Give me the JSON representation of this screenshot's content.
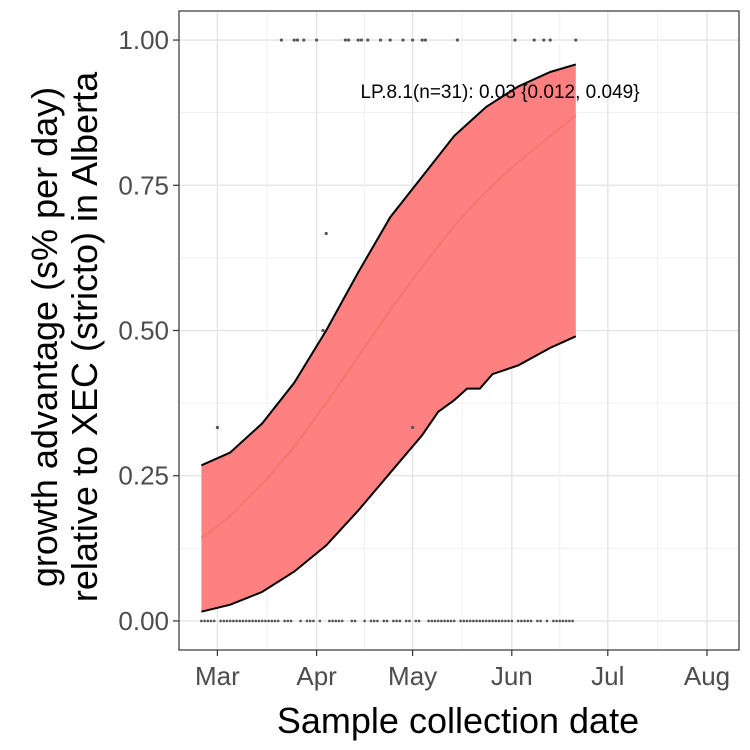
{
  "chart_data": {
    "type": "line",
    "xlabel": "Sample collection date",
    "ylabel": "growth advantage (s% per day)",
    "ylabel_line2": "relative to XEC (stricto) in Alberta",
    "annotation": "LP.8.1(n=31): 0.03 {0.012, 0.049}",
    "x_ticks": [
      {
        "label": "Mar",
        "date": "2025-03-01"
      },
      {
        "label": "Apr",
        "date": "2025-04-01"
      },
      {
        "label": "May",
        "date": "2025-05-01"
      },
      {
        "label": "Jun",
        "date": "2025-06-01"
      },
      {
        "label": "Jul",
        "date": "2025-07-01"
      },
      {
        "label": "Aug",
        "date": "2025-08-01"
      }
    ],
    "y_ticks": [
      "0.00",
      "0.25",
      "0.50",
      "0.75",
      "1.00"
    ],
    "xlim": [
      "2025-02-17",
      "2025-08-11"
    ],
    "ylim": [
      -0.05,
      1.05
    ],
    "grid": true,
    "colors": {
      "fit": "#f8766d",
      "band": "#ff8080",
      "band_edge": "#000000",
      "points": "#555555"
    },
    "series": [
      {
        "name": "LP.8.1",
        "fit": [
          {
            "x": "2025-02-24",
            "y": 0.143
          },
          {
            "x": "2025-03-05",
            "y": 0.18
          },
          {
            "x": "2025-03-15",
            "y": 0.235
          },
          {
            "x": "2025-03-25",
            "y": 0.3
          },
          {
            "x": "2025-04-04",
            "y": 0.375
          },
          {
            "x": "2025-04-14",
            "y": 0.455
          },
          {
            "x": "2025-04-24",
            "y": 0.535
          },
          {
            "x": "2025-05-04",
            "y": 0.61
          },
          {
            "x": "2025-05-14",
            "y": 0.68
          },
          {
            "x": "2025-05-24",
            "y": 0.74
          },
          {
            "x": "2025-06-03",
            "y": 0.79
          },
          {
            "x": "2025-06-13",
            "y": 0.835
          },
          {
            "x": "2025-06-21",
            "y": 0.87
          }
        ],
        "upper": [
          {
            "x": "2025-02-24",
            "y": 0.268
          },
          {
            "x": "2025-03-05",
            "y": 0.29
          },
          {
            "x": "2025-03-15",
            "y": 0.34
          },
          {
            "x": "2025-03-25",
            "y": 0.41
          },
          {
            "x": "2025-04-04",
            "y": 0.5
          },
          {
            "x": "2025-04-14",
            "y": 0.6
          },
          {
            "x": "2025-04-24",
            "y": 0.695
          },
          {
            "x": "2025-05-04",
            "y": 0.765
          },
          {
            "x": "2025-05-14",
            "y": 0.835
          },
          {
            "x": "2025-05-24",
            "y": 0.885
          },
          {
            "x": "2025-06-03",
            "y": 0.92
          },
          {
            "x": "2025-06-13",
            "y": 0.945
          },
          {
            "x": "2025-06-21",
            "y": 0.958
          }
        ],
        "lower": [
          {
            "x": "2025-02-24",
            "y": 0.016
          },
          {
            "x": "2025-03-05",
            "y": 0.028
          },
          {
            "x": "2025-03-15",
            "y": 0.05
          },
          {
            "x": "2025-03-25",
            "y": 0.085
          },
          {
            "x": "2025-04-04",
            "y": 0.13
          },
          {
            "x": "2025-04-14",
            "y": 0.19
          },
          {
            "x": "2025-04-24",
            "y": 0.255
          },
          {
            "x": "2025-05-04",
            "y": 0.32
          },
          {
            "x": "2025-05-09",
            "y": 0.36
          },
          {
            "x": "2025-05-14",
            "y": 0.38
          },
          {
            "x": "2025-05-18",
            "y": 0.4
          },
          {
            "x": "2025-05-22",
            "y": 0.4
          },
          {
            "x": "2025-05-26",
            "y": 0.425
          },
          {
            "x": "2025-06-03",
            "y": 0.44
          },
          {
            "x": "2025-06-13",
            "y": 0.47
          },
          {
            "x": "2025-06-21",
            "y": 0.49
          }
        ],
        "points": [
          {
            "x": "2025-03-01",
            "y": 0.333
          },
          {
            "x": "2025-04-03",
            "y": 0.5
          },
          {
            "x": "2025-04-04",
            "y": 0.667
          },
          {
            "x": "2025-05-01",
            "y": 0.333
          },
          {
            "x": "2025-03-21",
            "y": 1
          },
          {
            "x": "2025-03-25",
            "y": 1
          },
          {
            "x": "2025-03-26",
            "y": 1
          },
          {
            "x": "2025-03-28",
            "y": 1
          },
          {
            "x": "2025-04-01",
            "y": 1
          },
          {
            "x": "2025-04-10",
            "y": 1
          },
          {
            "x": "2025-04-11",
            "y": 1
          },
          {
            "x": "2025-04-14",
            "y": 1
          },
          {
            "x": "2025-04-15",
            "y": 1
          },
          {
            "x": "2025-04-17",
            "y": 1
          },
          {
            "x": "2025-04-21",
            "y": 1
          },
          {
            "x": "2025-04-24",
            "y": 1
          },
          {
            "x": "2025-04-28",
            "y": 1
          },
          {
            "x": "2025-05-01",
            "y": 1
          },
          {
            "x": "2025-05-04",
            "y": 1
          },
          {
            "x": "2025-05-05",
            "y": 1
          },
          {
            "x": "2025-05-15",
            "y": 1
          },
          {
            "x": "2025-06-02",
            "y": 1
          },
          {
            "x": "2025-06-08",
            "y": 1
          },
          {
            "x": "2025-06-11",
            "y": 1
          },
          {
            "x": "2025-06-13",
            "y": 1
          },
          {
            "x": "2025-06-21",
            "y": 1
          }
        ],
        "zero_point_dates": [
          "2025-02-24",
          "2025-02-25",
          "2025-02-26",
          "2025-02-27",
          "2025-02-28",
          "2025-03-02",
          "2025-03-03",
          "2025-03-04",
          "2025-03-05",
          "2025-03-06",
          "2025-03-07",
          "2025-03-08",
          "2025-03-09",
          "2025-03-10",
          "2025-03-11",
          "2025-03-12",
          "2025-03-13",
          "2025-03-14",
          "2025-03-15",
          "2025-03-16",
          "2025-03-17",
          "2025-03-18",
          "2025-03-19",
          "2025-03-20",
          "2025-03-22",
          "2025-03-23",
          "2025-03-24",
          "2025-03-27",
          "2025-03-29",
          "2025-03-30",
          "2025-03-31",
          "2025-04-02",
          "2025-04-05",
          "2025-04-06",
          "2025-04-07",
          "2025-04-08",
          "2025-04-09",
          "2025-04-12",
          "2025-04-13",
          "2025-04-16",
          "2025-04-18",
          "2025-04-19",
          "2025-04-20",
          "2025-04-22",
          "2025-04-23",
          "2025-04-25",
          "2025-04-26",
          "2025-04-27",
          "2025-04-29",
          "2025-04-30",
          "2025-05-02",
          "2025-05-03",
          "2025-05-06",
          "2025-05-07",
          "2025-05-08",
          "2025-05-09",
          "2025-05-10",
          "2025-05-11",
          "2025-05-12",
          "2025-05-13",
          "2025-05-14",
          "2025-05-16",
          "2025-05-17",
          "2025-05-18",
          "2025-05-19",
          "2025-05-20",
          "2025-05-21",
          "2025-05-22",
          "2025-05-23",
          "2025-05-24",
          "2025-05-25",
          "2025-05-26",
          "2025-05-27",
          "2025-05-28",
          "2025-05-29",
          "2025-05-30",
          "2025-05-31",
          "2025-06-01",
          "2025-06-03",
          "2025-06-04",
          "2025-06-05",
          "2025-06-06",
          "2025-06-07",
          "2025-06-09",
          "2025-06-10",
          "2025-06-12",
          "2025-06-14",
          "2025-06-15",
          "2025-06-16",
          "2025-06-17",
          "2025-06-18",
          "2025-06-19",
          "2025-06-20"
        ]
      }
    ]
  }
}
